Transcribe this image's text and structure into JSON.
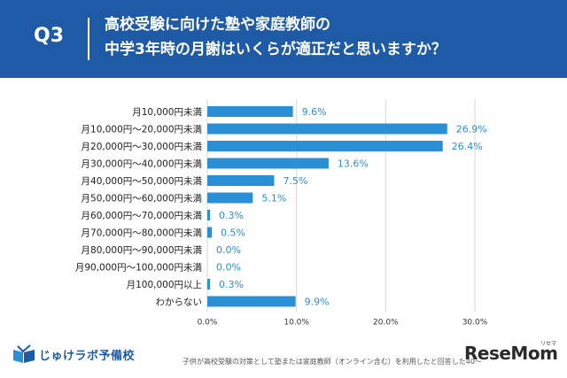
{
  "header": {
    "question_number": "Q3",
    "question_line1": "高校受験に向けた塾や家庭教師の",
    "question_line2": "中学3年時の月謝はいくらが適正だと思いますか？"
  },
  "chart_data": {
    "type": "bar",
    "orientation": "horizontal",
    "categories": [
      "月10,000円未満",
      "月10,000円〜20,000円未満",
      "月20,000円〜30,000円未満",
      "月30,000円〜40,000円未満",
      "月40,000円〜50,000円未満",
      "月50,000円〜60,000円未満",
      "月60,000円〜70,000円未満",
      "月70,000円〜80,000円未満",
      "月80,000円〜90,000円未満",
      "月90,000円〜100,000円未満",
      "月100,000円以上",
      "わからない"
    ],
    "values": [
      9.6,
      26.9,
      26.4,
      13.6,
      7.5,
      5.1,
      0.3,
      0.5,
      0.0,
      0.0,
      0.3,
      9.9
    ],
    "value_labels": [
      "9.6%",
      "26.9%",
      "26.4%",
      "13.6%",
      "7.5%",
      "5.1%",
      "0.3%",
      "0.5%",
      "0.0%",
      "0.0%",
      "0.3%",
      "9.9%"
    ],
    "xlim": [
      0,
      30
    ],
    "xticks": [
      0,
      10,
      20,
      30
    ],
    "xtick_labels": [
      "0.0%",
      "10.0%",
      "20.0%",
      "30.0%"
    ],
    "grid": true,
    "bar_color": "#2b8fd6",
    "label_color": "#2b8fd6"
  },
  "footer": {
    "logo_text": "じゅけラボ予備校",
    "note": "子供が高校受験の対策として塾または家庭教師（オンライン含む）を利用したと回答した40〜",
    "brand_name": "ReseMom",
    "brand_sub": "リセマム"
  },
  "colors": {
    "header_bg": "#1e5aa6",
    "header_text": "#ffffff",
    "page_bg": "#ffffff"
  }
}
